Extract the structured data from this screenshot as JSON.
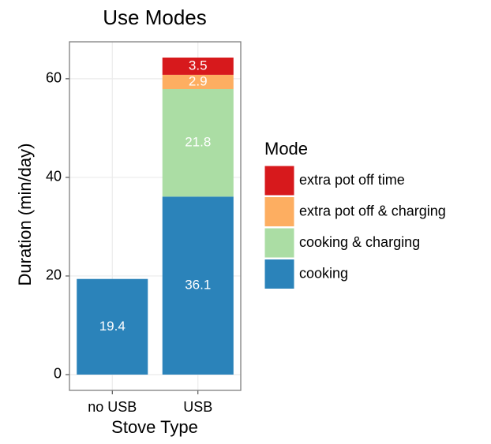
{
  "chart_data": {
    "type": "stacked_bar",
    "title": "Use Modes",
    "x_label": "Stove Type",
    "y_label": "Duration (min/day)",
    "categories": [
      "no USB",
      "USB"
    ],
    "series": [
      {
        "name": "cooking",
        "color": "#2b83ba",
        "values": [
          19.4,
          36.1
        ]
      },
      {
        "name": "cooking & charging",
        "color": "#abdda4",
        "values": [
          null,
          21.8
        ]
      },
      {
        "name": "extra pot off & charging",
        "color": "#fdae61",
        "values": [
          null,
          2.9
        ]
      },
      {
        "name": "extra pot off time",
        "color": "#d7191c",
        "values": [
          null,
          3.5
        ]
      }
    ],
    "legend_title": "Mode",
    "ylim": [
      -3.2,
      67.5
    ],
    "yticks": [
      0,
      20,
      40,
      60
    ],
    "grid": true
  }
}
